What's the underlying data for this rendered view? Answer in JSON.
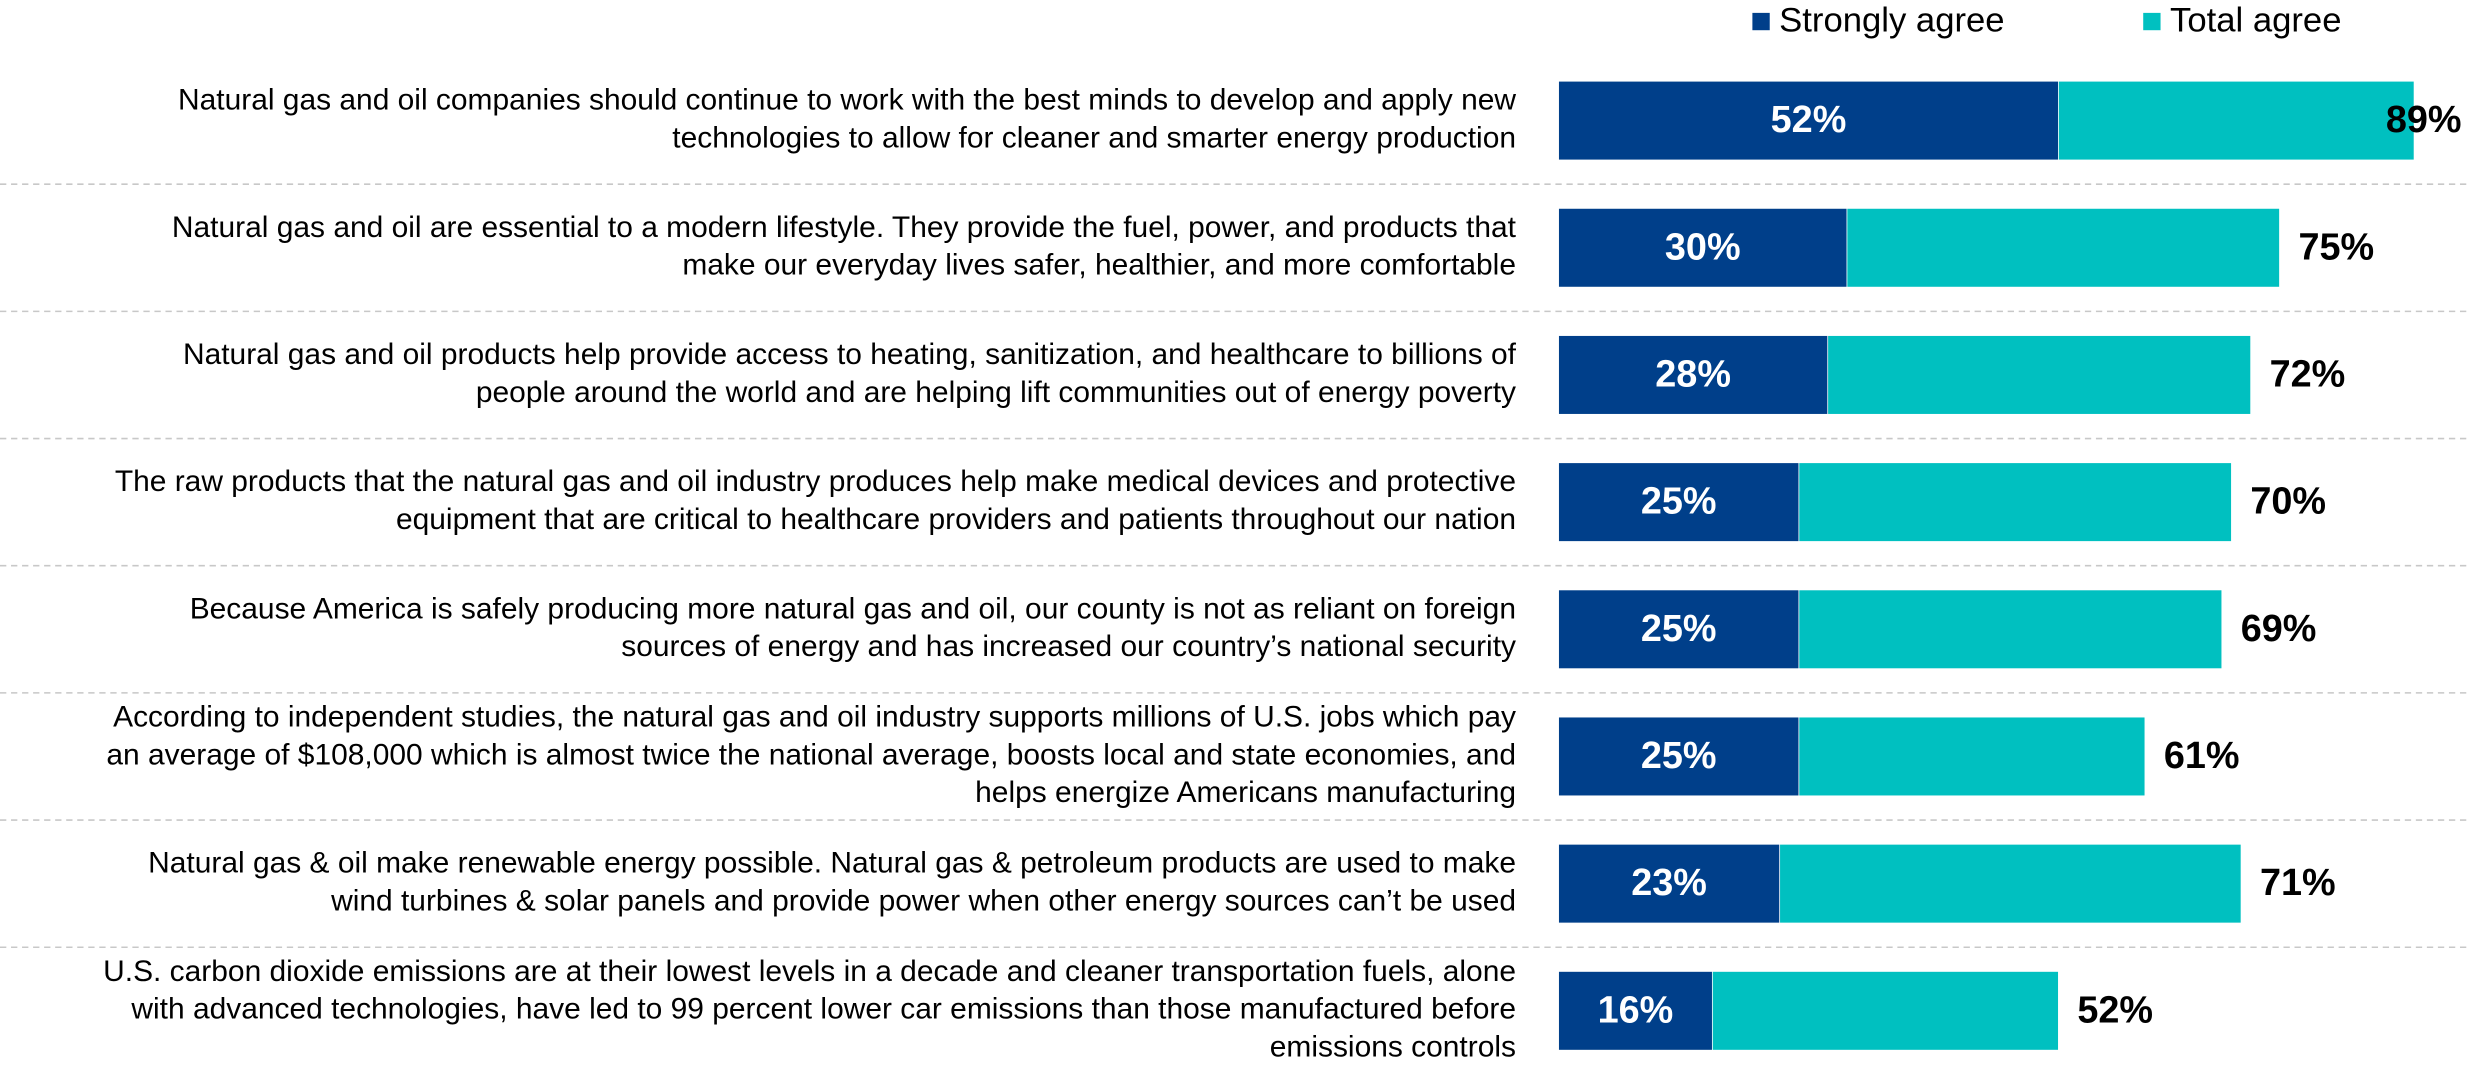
{
  "chart_data": {
    "type": "bar",
    "orientation": "horizontal",
    "categories": [
      [
        "Natural gas and oil companies should continue to work with the best minds to develop and apply new",
        "technologies to allow for cleaner and smarter energy production"
      ],
      [
        "Natural gas and oil are essential to a modern lifestyle. They provide the fuel, power, and products that",
        "make our everyday lives safer, healthier, and more comfortable"
      ],
      [
        "Natural gas and oil products help provide access to heating, sanitization, and healthcare to billions of",
        "people around the world and are helping lift communities out of energy poverty"
      ],
      [
        "The raw products that the natural gas and oil industry produces help make medical devices and protective",
        "equipment that are critical to healthcare providers and patients throughout our nation"
      ],
      [
        "Because America is safely producing more natural gas and oil, our county is not as reliant on foreign",
        "sources of energy and has increased our country’s national security"
      ],
      [
        "According to independent studies, the natural gas and oil industry supports millions of U.S. jobs which pay",
        "an average of $108,000 which is almost twice the national average, boosts local and state economies, and",
        "helps energize Americans manufacturing"
      ],
      [
        "Natural gas & oil make renewable energy possible. Natural gas & petroleum products are used to make",
        "wind turbines & solar panels and provide power when other energy sources can’t be used"
      ],
      [
        "U.S. carbon dioxide emissions are at their lowest levels in a decade and cleaner transportation fuels, alone",
        "with advanced technologies, have led to 99 percent lower car emissions than those manufactured before",
        "emissions controls"
      ]
    ],
    "series": [
      {
        "name": "Strongly agree",
        "color": "#003f8a",
        "values": [
          52,
          30,
          28,
          25,
          25,
          25,
          23,
          16
        ],
        "value_labels": [
          "52%",
          "30%",
          "28%",
          "25%",
          "25%",
          "25%",
          "23%",
          "16%"
        ]
      },
      {
        "name": "Total agree",
        "color": "#00c0c0",
        "values": [
          89,
          75,
          72,
          70,
          69,
          61,
          71,
          52
        ],
        "value_labels": [
          "89%",
          "75%",
          "72%",
          "70%",
          "69%",
          "61%",
          "71%",
          "52%"
        ]
      }
    ],
    "xlim": [
      0,
      100
    ],
    "legend": "top"
  }
}
